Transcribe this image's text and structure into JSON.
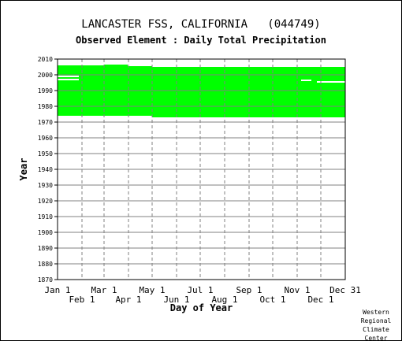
{
  "chart_data": {
    "type": "heatmap",
    "title": "LANCASTER FSS, CALIFORNIA   (044749)",
    "subtitle": "Observed Element : Daily Total Precipitation",
    "xlabel": "Day of Year",
    "ylabel": "Year",
    "x_range_days": [
      1,
      366
    ],
    "ylim": [
      1870,
      2010
    ],
    "grid": true,
    "x_ticks_upper": [
      {
        "label": "Jan 1",
        "day": 1
      },
      {
        "label": "Mar 1",
        "day": 60
      },
      {
        "label": "May 1",
        "day": 121
      },
      {
        "label": "Jul 1",
        "day": 182
      },
      {
        "label": "Sep 1",
        "day": 244
      },
      {
        "label": "Nov 1",
        "day": 305
      },
      {
        "label": "Dec 31",
        "day": 366
      }
    ],
    "x_ticks_lower": [
      {
        "label": "Feb 1",
        "day": 32
      },
      {
        "label": "Apr 1",
        "day": 91
      },
      {
        "label": "Jun 1",
        "day": 152
      },
      {
        "label": "Aug 1",
        "day": 213
      },
      {
        "label": "Oct 1",
        "day": 274
      },
      {
        "label": "Dec 1",
        "day": 335
      }
    ],
    "y_ticks": [
      1870,
      1880,
      1890,
      1900,
      1910,
      1920,
      1930,
      1940,
      1950,
      1960,
      1970,
      1980,
      1990,
      2000,
      2010
    ],
    "data_color": "#00ff00",
    "coverage_blocks": [
      {
        "day_start": 1,
        "day_end": 60,
        "year_start": 1974,
        "year_end": 2006
      },
      {
        "day_start": 60,
        "day_end": 90,
        "year_start": 1974,
        "year_end": 2006.5
      },
      {
        "day_start": 90,
        "day_end": 121,
        "year_start": 1974,
        "year_end": 2005.5
      },
      {
        "day_start": 121,
        "day_end": 366,
        "year_start": 1973,
        "year_end": 2005
      }
    ],
    "missing_segments": [
      {
        "day_start": 1,
        "day_end": 28,
        "year": 1999
      },
      {
        "day_start": 1,
        "day_end": 28,
        "year": 1997
      },
      {
        "day_start": 310,
        "day_end": 323,
        "year": 1996.5
      },
      {
        "day_start": 330,
        "day_end": 366,
        "year": 1995.5
      }
    ]
  },
  "credit": [
    "Western",
    "Regional",
    "Climate",
    "Center"
  ]
}
